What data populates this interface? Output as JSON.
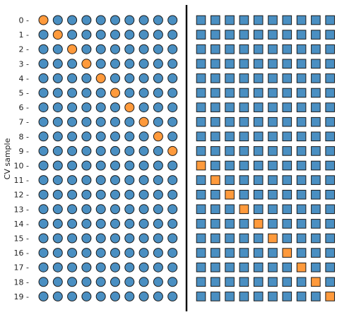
{
  "chart_data": {
    "type": "scatter",
    "ylabel": "CV sample",
    "y_tick_labels": [
      "0 -",
      "1 -",
      "2 -",
      "3 -",
      "4 -",
      "5 -",
      "6 -",
      "7 -",
      "8 -",
      "9 -",
      "10 -",
      "11 -",
      "12 -",
      "13 -",
      "14 -",
      "15 -",
      "16 -",
      "17 -",
      "18 -",
      "19 -"
    ],
    "rows": 20,
    "grid": false,
    "legend": "none",
    "panels": [
      {
        "marker": "circle",
        "columns": 10,
        "highlighted_column_per_row": [
          0,
          1,
          2,
          3,
          4,
          5,
          6,
          7,
          8,
          9,
          null,
          null,
          null,
          null,
          null,
          null,
          null,
          null,
          null,
          null
        ]
      },
      {
        "marker": "square",
        "columns": 10,
        "highlighted_column_per_row": [
          null,
          null,
          null,
          null,
          null,
          null,
          null,
          null,
          null,
          null,
          0,
          1,
          2,
          3,
          4,
          5,
          6,
          7,
          8,
          9
        ]
      }
    ],
    "colors": {
      "default_fill": "#4a8fc2",
      "highlight_fill": "#ff9a3c",
      "edge": "#1a1a1a",
      "separator": "#000000"
    }
  }
}
